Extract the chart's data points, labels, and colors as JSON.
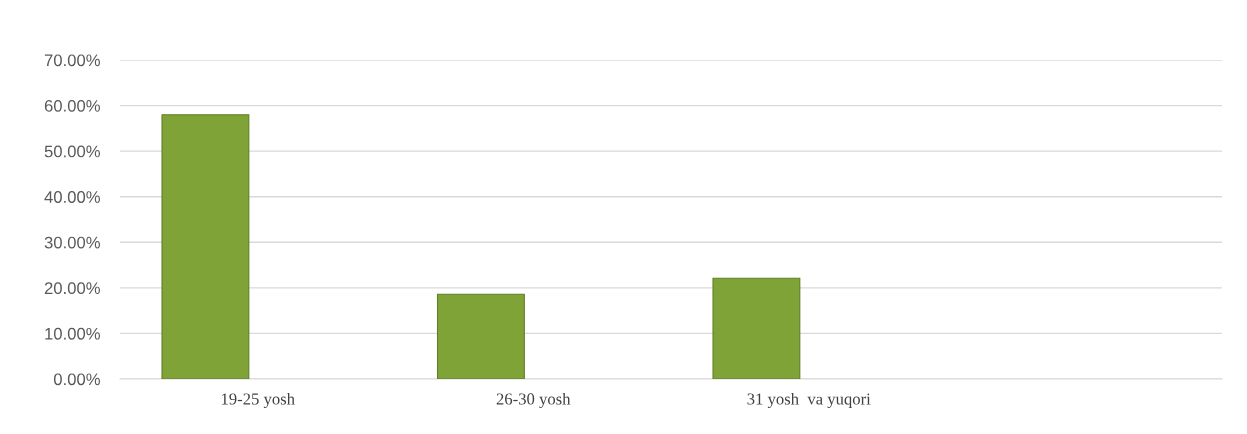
{
  "chart_data": {
    "type": "bar",
    "categories": [
      "19-25 yosh",
      "26-30 yosh",
      "31 yosh  va yuqori",
      null
    ],
    "values": [
      58.0,
      18.6,
      22.1,
      null
    ],
    "color": "#7fa336",
    "ylim": [
      0,
      70
    ],
    "yticks": [
      {
        "value": 0,
        "label": "0.00%"
      },
      {
        "value": 10,
        "label": "10.00%"
      },
      {
        "value": 20,
        "label": "20.00%"
      },
      {
        "value": 30,
        "label": "30.00%"
      },
      {
        "value": 40,
        "label": "40.00%"
      },
      {
        "value": 50,
        "label": "50.00%"
      },
      {
        "value": 60,
        "label": "60.00%"
      },
      {
        "value": 70,
        "label": "70.00%"
      }
    ],
    "grid": "y"
  }
}
